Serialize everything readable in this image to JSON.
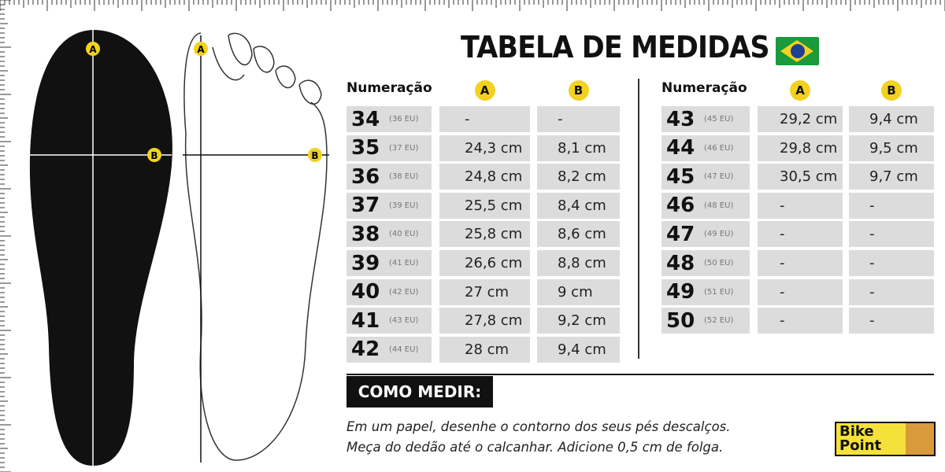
{
  "title": "TABELA DE MEDIDAS",
  "flag_icon": "brazil-flag-icon",
  "markers": {
    "a": "A",
    "b": "B"
  },
  "headers": {
    "size": "Numeração",
    "a": "A",
    "b": "B"
  },
  "left_rows": [
    {
      "br": "34",
      "eu": "(36 EU)",
      "a": "-",
      "b": "-"
    },
    {
      "br": "35",
      "eu": "(37 EU)",
      "a": "24,3 cm",
      "b": "8,1 cm"
    },
    {
      "br": "36",
      "eu": "(38 EU)",
      "a": "24,8 cm",
      "b": "8,2 cm"
    },
    {
      "br": "37",
      "eu": "(39 EU)",
      "a": "25,5 cm",
      "b": "8,4 cm"
    },
    {
      "br": "38",
      "eu": "(40 EU)",
      "a": "25,8 cm",
      "b": "8,6 cm"
    },
    {
      "br": "39",
      "eu": "(41 EU)",
      "a": "26,6 cm",
      "b": "8,8 cm"
    },
    {
      "br": "40",
      "eu": "(42 EU)",
      "a": "27 cm",
      "b": "9 cm"
    },
    {
      "br": "41",
      "eu": "(43 EU)",
      "a": "27,8 cm",
      "b": "9,2 cm"
    },
    {
      "br": "42",
      "eu": "(44 EU)",
      "a": "28 cm",
      "b": "9,4 cm"
    }
  ],
  "right_rows": [
    {
      "br": "43",
      "eu": "(45 EU)",
      "a": "29,2 cm",
      "b": "9,4 cm"
    },
    {
      "br": "44",
      "eu": "(46 EU)",
      "a": "29,8 cm",
      "b": "9,5 cm"
    },
    {
      "br": "45",
      "eu": "(47 EU)",
      "a": "30,5 cm",
      "b": "9,7 cm"
    },
    {
      "br": "46",
      "eu": "(48 EU)",
      "a": "-",
      "b": "-"
    },
    {
      "br": "47",
      "eu": "(49 EU)",
      "a": "-",
      "b": "-"
    },
    {
      "br": "48",
      "eu": "(50 EU)",
      "a": "-",
      "b": "-"
    },
    {
      "br": "49",
      "eu": "(51 EU)",
      "a": "-",
      "b": "-"
    },
    {
      "br": "50",
      "eu": "(52 EU)",
      "a": "-",
      "b": "-"
    }
  ],
  "how_to": {
    "title": "COMO MEDIR:",
    "line1": "Em um papel,  desenhe o contorno dos seus pés descalços.",
    "line2": "Meça do dedão até o calcanhar. Adicione 0,5 cm de folga."
  },
  "logo": {
    "text_line1": "Bike",
    "text_line2": "Point"
  },
  "colors": {
    "marker": "#f2d21e",
    "cell": "#dcdcdc",
    "insole": "#111111"
  }
}
